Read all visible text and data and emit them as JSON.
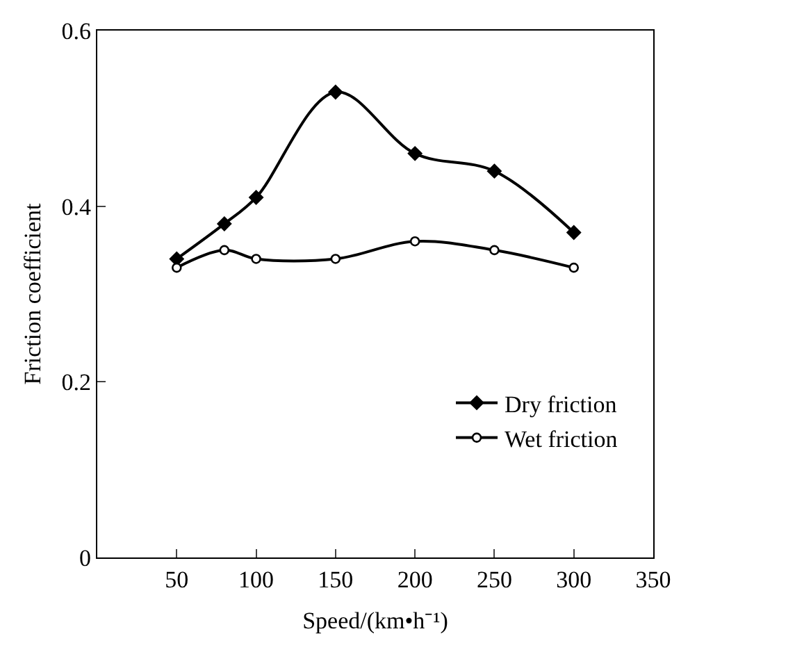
{
  "chart_data": {
    "type": "line",
    "xlabel": "Speed/(km•h⁻¹)",
    "ylabel": "Friction coefficient",
    "x": [
      50,
      80,
      100,
      150,
      200,
      250,
      300
    ],
    "series": [
      {
        "name": "Dry friction",
        "color": "#000000",
        "marker": "diamond",
        "values": [
          0.34,
          0.38,
          0.41,
          0.53,
          0.46,
          0.44,
          0.37
        ]
      },
      {
        "name": "Wet friction",
        "color": "#000000",
        "marker": "circle",
        "values": [
          0.33,
          0.35,
          0.34,
          0.34,
          0.36,
          0.35,
          0.33
        ]
      }
    ],
    "xlim": [
      0,
      350
    ],
    "xticks": [
      50,
      100,
      150,
      200,
      250,
      300,
      350
    ],
    "ylim": [
      0,
      0.6
    ],
    "yticks": [
      0,
      0.2,
      0.4,
      0.6
    ],
    "grid": false,
    "legend": "bottom right",
    "line_style": "solid"
  }
}
